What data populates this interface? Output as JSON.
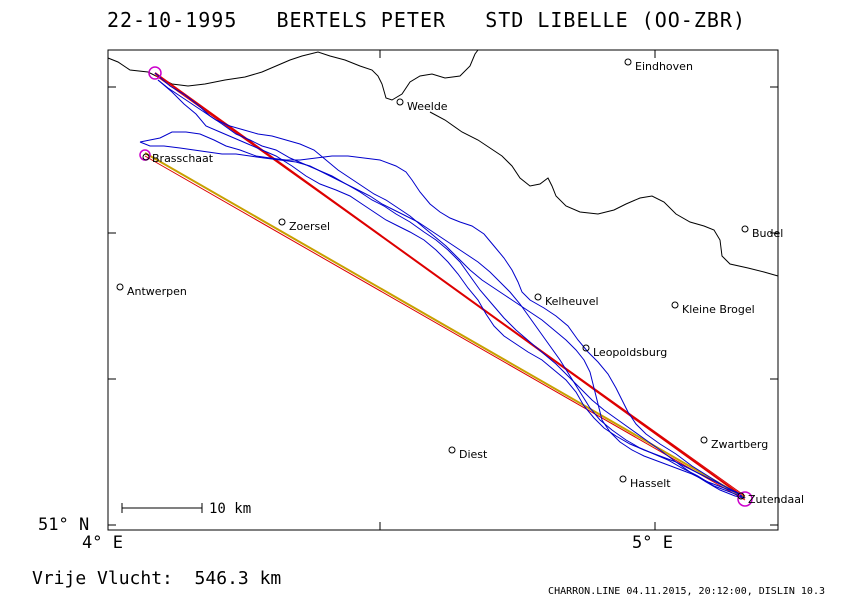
{
  "title": {
    "date": "22-10-1995",
    "pilot": "BERTELS PETER",
    "glider": "STD LIBELLE (OO-ZBR)"
  },
  "axes": {
    "lon_label_left": "4° E",
    "lon_label_right": "5° E",
    "lat_label_bottom": "51° N"
  },
  "scale_bar": {
    "label": "10 km"
  },
  "places": [
    {
      "name": "Eindhoven"
    },
    {
      "name": "Weelde"
    },
    {
      "name": "Brasschaat"
    },
    {
      "name": "Zoersel"
    },
    {
      "name": "Budel"
    },
    {
      "name": "Antwerpen"
    },
    {
      "name": "Kelheuvel"
    },
    {
      "name": "Kleine Brogel"
    },
    {
      "name": "Leopoldsburg"
    },
    {
      "name": "Zwartberg"
    },
    {
      "name": "Diest"
    },
    {
      "name": "Hasselt"
    },
    {
      "name": "Zutendaal"
    }
  ],
  "footer": {
    "flight": "Vrije Vlucht:  546.3 km",
    "credit": "CHARRON.LINE 04.11.2015, 20:12:00, DISLIN 10.3"
  },
  "colors": {
    "track": "#0000cc",
    "task_line": "#dd0000",
    "task_line_alt": "#c8a000",
    "turnpoint": "#cc00cc",
    "border": "#000000"
  }
}
